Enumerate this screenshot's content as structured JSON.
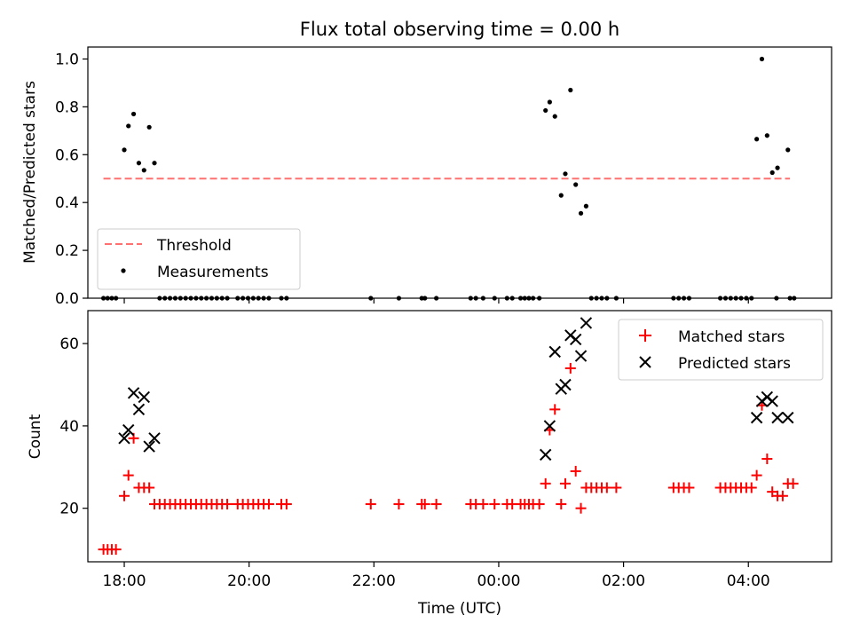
{
  "chart_data": [
    {
      "type": "scatter",
      "title": "Flux total observing time = 0.00 h",
      "ylabel": "Matched/Predicted stars",
      "xlim": [
        "17:25",
        "05:20"
      ],
      "ylim": [
        0,
        1.05
      ],
      "y_ticks": [
        0.0,
        0.2,
        0.4,
        0.6,
        0.8,
        1.0
      ],
      "y_tick_labels": [
        "0.0",
        "0.2",
        "0.4",
        "0.6",
        "0.8",
        "1.0"
      ],
      "legend_position": "lower-left",
      "grid": false,
      "series": [
        {
          "name": "Threshold",
          "style": "dashed-line",
          "color": "#ff7070",
          "points": [
            {
              "x": "17:40",
              "y": 0.5
            },
            {
              "x": "04:40",
              "y": 0.5
            }
          ]
        },
        {
          "name": "Measurements",
          "style": "dot",
          "color": "#000000",
          "points": [
            {
              "x": "17:40",
              "y": 0
            },
            {
              "x": "17:44",
              "y": 0
            },
            {
              "x": "17:48",
              "y": 0
            },
            {
              "x": "17:52",
              "y": 0
            },
            {
              "x": "18:00",
              "y": 0.62
            },
            {
              "x": "18:04",
              "y": 0.72
            },
            {
              "x": "18:09",
              "y": 0.77
            },
            {
              "x": "18:14",
              "y": 0.565
            },
            {
              "x": "18:19",
              "y": 0.535
            },
            {
              "x": "18:24",
              "y": 0.715
            },
            {
              "x": "18:29",
              "y": 0.565
            },
            {
              "x": "18:34",
              "y": 0
            },
            {
              "x": "18:39",
              "y": 0
            },
            {
              "x": "18:44",
              "y": 0
            },
            {
              "x": "18:49",
              "y": 0
            },
            {
              "x": "18:54",
              "y": 0
            },
            {
              "x": "18:59",
              "y": 0
            },
            {
              "x": "19:04",
              "y": 0
            },
            {
              "x": "19:09",
              "y": 0
            },
            {
              "x": "19:14",
              "y": 0
            },
            {
              "x": "19:19",
              "y": 0
            },
            {
              "x": "19:24",
              "y": 0
            },
            {
              "x": "19:29",
              "y": 0
            },
            {
              "x": "19:34",
              "y": 0
            },
            {
              "x": "19:39",
              "y": 0
            },
            {
              "x": "19:49",
              "y": 0
            },
            {
              "x": "19:54",
              "y": 0
            },
            {
              "x": "19:59",
              "y": 0
            },
            {
              "x": "20:04",
              "y": 0
            },
            {
              "x": "20:09",
              "y": 0
            },
            {
              "x": "20:14",
              "y": 0
            },
            {
              "x": "20:19",
              "y": 0
            },
            {
              "x": "20:31",
              "y": 0
            },
            {
              "x": "20:36",
              "y": 0
            },
            {
              "x": "21:57",
              "y": 0
            },
            {
              "x": "22:24",
              "y": 0
            },
            {
              "x": "22:46",
              "y": 0
            },
            {
              "x": "22:49",
              "y": 0
            },
            {
              "x": "23:00",
              "y": 0
            },
            {
              "x": "23:33",
              "y": 0
            },
            {
              "x": "23:38",
              "y": 0
            },
            {
              "x": "23:45",
              "y": 0
            },
            {
              "x": "23:56",
              "y": 0
            },
            {
              "x": "00:08",
              "y": 0
            },
            {
              "x": "00:13",
              "y": 0
            },
            {
              "x": "00:21",
              "y": 0
            },
            {
              "x": "00:25",
              "y": 0
            },
            {
              "x": "00:29",
              "y": 0
            },
            {
              "x": "00:33",
              "y": 0
            },
            {
              "x": "00:39",
              "y": 0
            },
            {
              "x": "00:45",
              "y": 0.785
            },
            {
              "x": "00:49",
              "y": 0.82
            },
            {
              "x": "00:54",
              "y": 0.76
            },
            {
              "x": "01:00",
              "y": 0.43
            },
            {
              "x": "01:04",
              "y": 0.52
            },
            {
              "x": "01:09",
              "y": 0.87
            },
            {
              "x": "01:14",
              "y": 0.475
            },
            {
              "x": "01:19",
              "y": 0.355
            },
            {
              "x": "01:24",
              "y": 0.385
            },
            {
              "x": "01:29",
              "y": 0
            },
            {
              "x": "01:34",
              "y": 0
            },
            {
              "x": "01:39",
              "y": 0
            },
            {
              "x": "01:44",
              "y": 0
            },
            {
              "x": "01:53",
              "y": 0
            },
            {
              "x": "02:48",
              "y": 0
            },
            {
              "x": "02:53",
              "y": 0
            },
            {
              "x": "02:58",
              "y": 0
            },
            {
              "x": "03:03",
              "y": 0
            },
            {
              "x": "03:33",
              "y": 0
            },
            {
              "x": "03:38",
              "y": 0
            },
            {
              "x": "03:43",
              "y": 0
            },
            {
              "x": "03:48",
              "y": 0
            },
            {
              "x": "03:53",
              "y": 0
            },
            {
              "x": "03:58",
              "y": 0
            },
            {
              "x": "04:03",
              "y": 0
            },
            {
              "x": "04:08",
              "y": 0.665
            },
            {
              "x": "04:13",
              "y": 1.0
            },
            {
              "x": "04:18",
              "y": 0.68
            },
            {
              "x": "04:23",
              "y": 0.525
            },
            {
              "x": "04:27",
              "y": 0
            },
            {
              "x": "04:28",
              "y": 0.545
            },
            {
              "x": "04:38",
              "y": 0.62
            },
            {
              "x": "04:40",
              "y": 0
            },
            {
              "x": "04:44",
              "y": 0
            }
          ]
        }
      ]
    },
    {
      "type": "scatter",
      "xlabel": "Time (UTC)",
      "ylabel": "Count",
      "xlim": [
        "17:25",
        "05:20"
      ],
      "ylim": [
        7,
        68
      ],
      "x_ticks": [
        "18:00",
        "20:00",
        "22:00",
        "00:00",
        "02:00",
        "04:00"
      ],
      "y_ticks": [
        20,
        40,
        60
      ],
      "y_tick_labels": [
        "20",
        "40",
        "60"
      ],
      "legend_position": "top-right",
      "grid": false,
      "series": [
        {
          "name": "Matched stars",
          "marker": "+",
          "color": "#ff0000",
          "points": [
            {
              "x": "17:40",
              "y": 10
            },
            {
              "x": "17:44",
              "y": 10
            },
            {
              "x": "17:48",
              "y": 10
            },
            {
              "x": "17:52",
              "y": 10
            },
            {
              "x": "18:00",
              "y": 23
            },
            {
              "x": "18:04",
              "y": 28
            },
            {
              "x": "18:09",
              "y": 37
            },
            {
              "x": "18:14",
              "y": 25
            },
            {
              "x": "18:19",
              "y": 25
            },
            {
              "x": "18:24",
              "y": 25
            },
            {
              "x": "18:29",
              "y": 21
            },
            {
              "x": "18:34",
              "y": 21
            },
            {
              "x": "18:39",
              "y": 21
            },
            {
              "x": "18:44",
              "y": 21
            },
            {
              "x": "18:49",
              "y": 21
            },
            {
              "x": "18:54",
              "y": 21
            },
            {
              "x": "18:59",
              "y": 21
            },
            {
              "x": "19:04",
              "y": 21
            },
            {
              "x": "19:09",
              "y": 21
            },
            {
              "x": "19:14",
              "y": 21
            },
            {
              "x": "19:19",
              "y": 21
            },
            {
              "x": "19:24",
              "y": 21
            },
            {
              "x": "19:29",
              "y": 21
            },
            {
              "x": "19:34",
              "y": 21
            },
            {
              "x": "19:39",
              "y": 21
            },
            {
              "x": "19:49",
              "y": 21
            },
            {
              "x": "19:54",
              "y": 21
            },
            {
              "x": "19:59",
              "y": 21
            },
            {
              "x": "20:04",
              "y": 21
            },
            {
              "x": "20:09",
              "y": 21
            },
            {
              "x": "20:14",
              "y": 21
            },
            {
              "x": "20:19",
              "y": 21
            },
            {
              "x": "20:31",
              "y": 21
            },
            {
              "x": "20:36",
              "y": 21
            },
            {
              "x": "21:57",
              "y": 21
            },
            {
              "x": "22:24",
              "y": 21
            },
            {
              "x": "22:46",
              "y": 21
            },
            {
              "x": "22:49",
              "y": 21
            },
            {
              "x": "23:00",
              "y": 21
            },
            {
              "x": "23:33",
              "y": 21
            },
            {
              "x": "23:38",
              "y": 21
            },
            {
              "x": "23:45",
              "y": 21
            },
            {
              "x": "23:56",
              "y": 21
            },
            {
              "x": "00:08",
              "y": 21
            },
            {
              "x": "00:13",
              "y": 21
            },
            {
              "x": "00:21",
              "y": 21
            },
            {
              "x": "00:25",
              "y": 21
            },
            {
              "x": "00:29",
              "y": 21
            },
            {
              "x": "00:33",
              "y": 21
            },
            {
              "x": "00:39",
              "y": 21
            },
            {
              "x": "00:45",
              "y": 26
            },
            {
              "x": "00:49",
              "y": 39
            },
            {
              "x": "00:54",
              "y": 44
            },
            {
              "x": "01:00",
              "y": 21
            },
            {
              "x": "01:04",
              "y": 26
            },
            {
              "x": "01:09",
              "y": 54
            },
            {
              "x": "01:14",
              "y": 29
            },
            {
              "x": "01:19",
              "y": 20
            },
            {
              "x": "01:24",
              "y": 25
            },
            {
              "x": "01:29",
              "y": 25
            },
            {
              "x": "01:34",
              "y": 25
            },
            {
              "x": "01:39",
              "y": 25
            },
            {
              "x": "01:44",
              "y": 25
            },
            {
              "x": "01:53",
              "y": 25
            },
            {
              "x": "02:48",
              "y": 25
            },
            {
              "x": "02:53",
              "y": 25
            },
            {
              "x": "02:58",
              "y": 25
            },
            {
              "x": "03:03",
              "y": 25
            },
            {
              "x": "03:33",
              "y": 25
            },
            {
              "x": "03:38",
              "y": 25
            },
            {
              "x": "03:43",
              "y": 25
            },
            {
              "x": "03:48",
              "y": 25
            },
            {
              "x": "03:53",
              "y": 25
            },
            {
              "x": "03:58",
              "y": 25
            },
            {
              "x": "04:03",
              "y": 25
            },
            {
              "x": "04:08",
              "y": 28
            },
            {
              "x": "04:13",
              "y": 45
            },
            {
              "x": "04:18",
              "y": 32
            },
            {
              "x": "04:23",
              "y": 24
            },
            {
              "x": "04:28",
              "y": 23
            },
            {
              "x": "04:33",
              "y": 23
            },
            {
              "x": "04:38",
              "y": 26
            },
            {
              "x": "04:43",
              "y": 26
            }
          ]
        },
        {
          "name": "Predicted stars",
          "marker": "x",
          "color": "#000000",
          "points": [
            {
              "x": "18:00",
              "y": 37
            },
            {
              "x": "18:04",
              "y": 39
            },
            {
              "x": "18:09",
              "y": 48
            },
            {
              "x": "18:14",
              "y": 44
            },
            {
              "x": "18:19",
              "y": 47
            },
            {
              "x": "18:24",
              "y": 35
            },
            {
              "x": "18:29",
              "y": 37
            },
            {
              "x": "00:45",
              "y": 33
            },
            {
              "x": "00:49",
              "y": 40
            },
            {
              "x": "00:54",
              "y": 58
            },
            {
              "x": "01:00",
              "y": 49
            },
            {
              "x": "01:04",
              "y": 50
            },
            {
              "x": "01:09",
              "y": 62
            },
            {
              "x": "01:14",
              "y": 61
            },
            {
              "x": "01:19",
              "y": 57
            },
            {
              "x": "01:24",
              "y": 65
            },
            {
              "x": "04:08",
              "y": 42
            },
            {
              "x": "04:13",
              "y": 46
            },
            {
              "x": "04:18",
              "y": 47
            },
            {
              "x": "04:23",
              "y": 46
            },
            {
              "x": "04:28",
              "y": 42
            },
            {
              "x": "04:38",
              "y": 42
            }
          ]
        }
      ]
    }
  ]
}
